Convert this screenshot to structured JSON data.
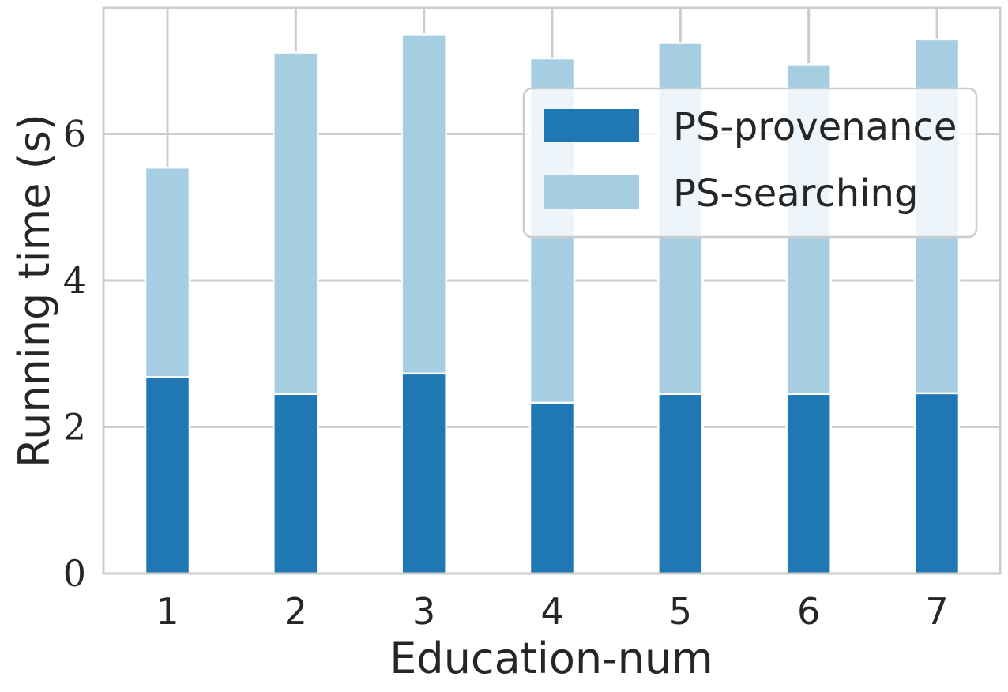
{
  "chart_data": {
    "type": "bar",
    "stacked": true,
    "categories": [
      "1",
      "2",
      "3",
      "4",
      "5",
      "6",
      "7"
    ],
    "series": [
      {
        "name": "PS-provenance",
        "color": "#1f78b4",
        "values": [
          2.68,
          2.45,
          2.73,
          2.33,
          2.45,
          2.45,
          2.46
        ]
      },
      {
        "name": "PS-searching",
        "color": "#a6cee3",
        "values": [
          2.86,
          4.66,
          4.63,
          4.7,
          4.79,
          4.5,
          4.83
        ]
      }
    ],
    "xlabel": "Education-num",
    "ylabel": "Running time (s)",
    "ylim": [
      0,
      7.72
    ],
    "yticks": [
      0,
      2,
      4,
      6
    ],
    "ytick_labels": [
      "0",
      "2",
      "4",
      "6"
    ],
    "grid": true,
    "legend_position": "top-right"
  }
}
